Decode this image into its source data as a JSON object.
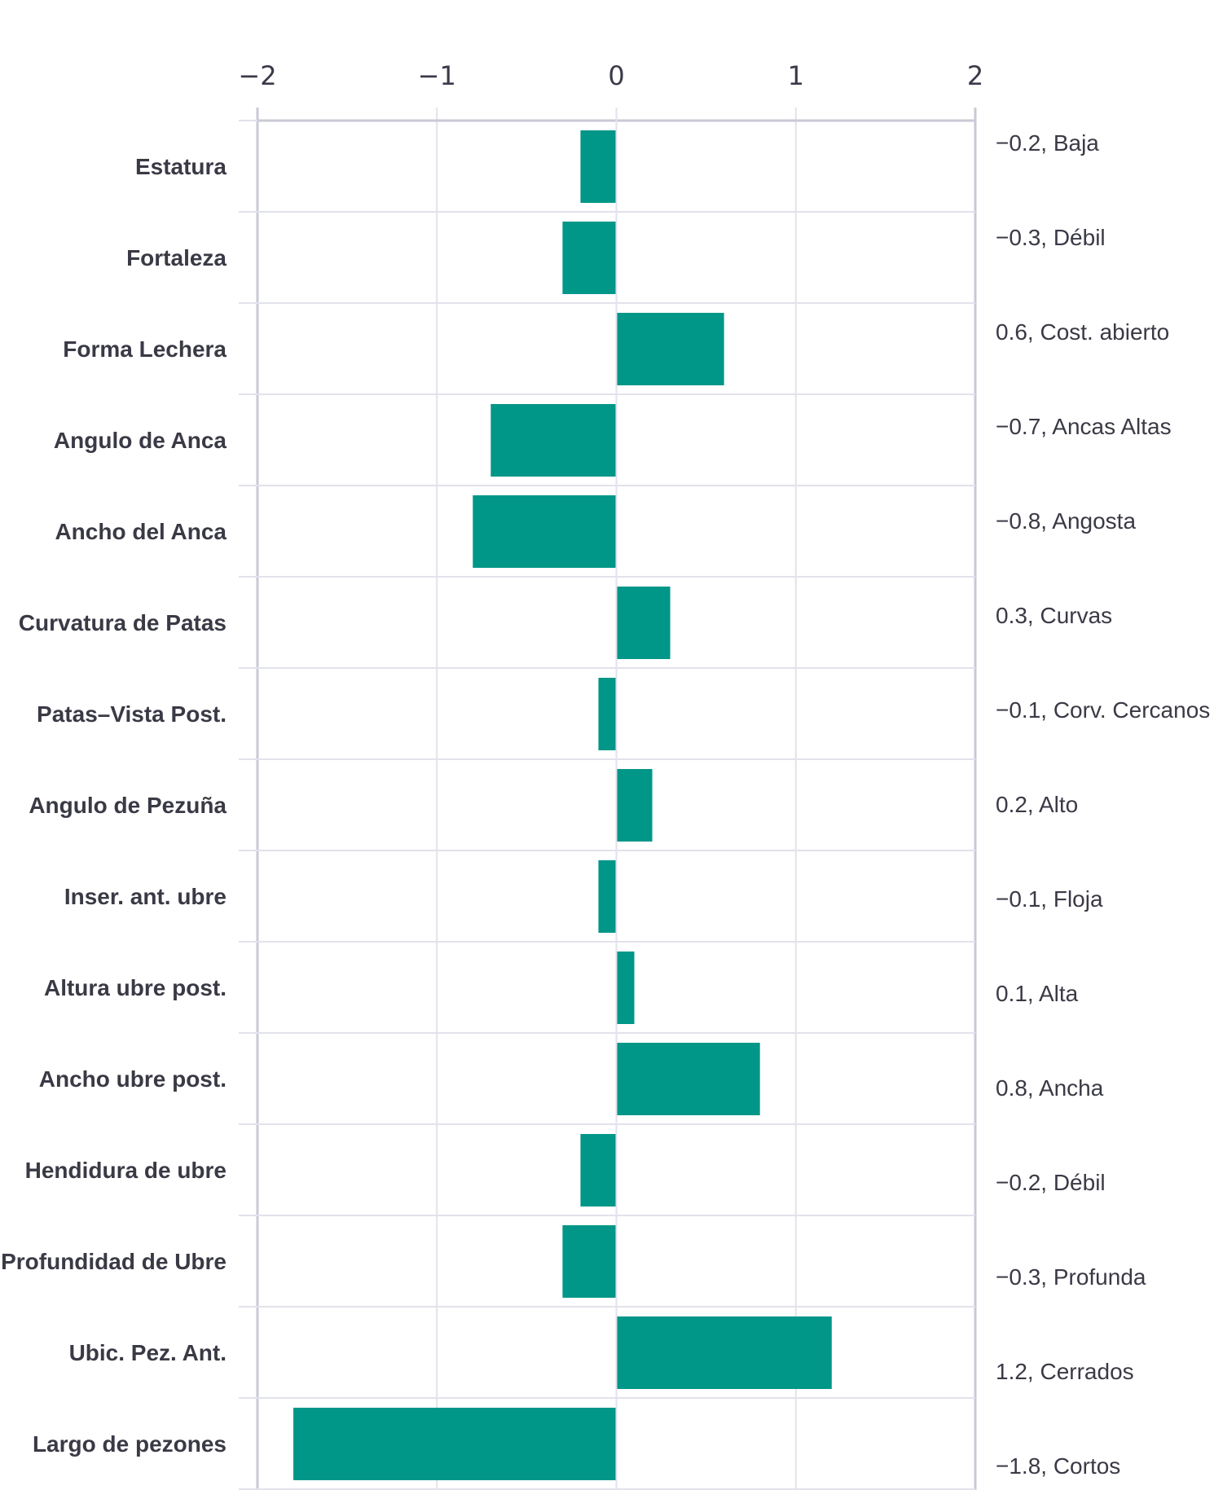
{
  "chart_data": {
    "type": "bar",
    "orientation": "horizontal",
    "title": "",
    "xlabel": "",
    "ylabel": "",
    "xlim": [
      -2,
      2
    ],
    "x_ticks": [
      -2,
      -1,
      0,
      1,
      2
    ],
    "x_tick_labels": [
      "−2",
      "−1",
      "0",
      "1",
      "2"
    ],
    "grid": true,
    "bar_color": "#009688",
    "grid_color": "#e2e2ec",
    "axis_color": "#c9c9d6",
    "categories": [
      "Estatura",
      "Fortaleza",
      "Forma Lechera",
      "Angulo de Anca",
      "Ancho del Anca",
      "Curvatura de Patas",
      "Patas–Vista Post.",
      "Angulo de Pezuña",
      "Inser. ant. ubre",
      "Altura ubre post.",
      "Ancho ubre post.",
      "Hendidura de ubre",
      "Profundidad de Ubre",
      "Ubic. Pez. Ant.",
      "Largo de pezones"
    ],
    "values": [
      -0.2,
      -0.3,
      0.6,
      -0.7,
      -0.8,
      0.3,
      -0.1,
      0.2,
      -0.1,
      0.1,
      0.8,
      -0.2,
      -0.3,
      1.2,
      -1.8
    ],
    "value_labels": [
      "−0.2, Baja",
      "−0.3, Débil",
      "0.6, Cost. abierto",
      "−0.7, Ancas Altas",
      "−0.8, Angosta",
      "0.3, Curvas",
      "−0.1, Corv. Cercanos",
      "0.2, Alto",
      "−0.1, Floja",
      "0.1, Alta",
      "0.8, Ancha",
      "−0.2, Débil",
      "−0.3, Profunda",
      "1.2, Cerrados",
      "−1.8, Cortos"
    ]
  }
}
